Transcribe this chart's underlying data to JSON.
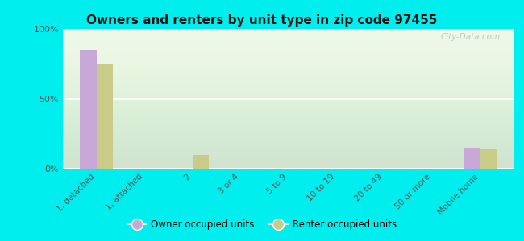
{
  "title": "Owners and renters by unit type in zip code 97455",
  "categories": [
    "1, detached",
    "1, attached",
    "2",
    "3 or 4",
    "5 to 9",
    "10 to 19",
    "20 to 49",
    "50 or more",
    "Mobile home"
  ],
  "owner_values": [
    85,
    0,
    0,
    0,
    0,
    0,
    0,
    0,
    15
  ],
  "renter_values": [
    75,
    0,
    10,
    0,
    0,
    0,
    0,
    0,
    14
  ],
  "owner_color": "#c8a8d8",
  "renter_color": "#c8cc88",
  "background_color": "#00eeee",
  "plot_bg_color": "#eef8e8",
  "ylim": [
    0,
    100
  ],
  "yticks": [
    0,
    50,
    100
  ],
  "ytick_labels": [
    "0%",
    "50%",
    "100%"
  ],
  "watermark": "City-Data.com",
  "legend_owner": "Owner occupied units",
  "legend_renter": "Renter occupied units",
  "bar_width": 0.35
}
